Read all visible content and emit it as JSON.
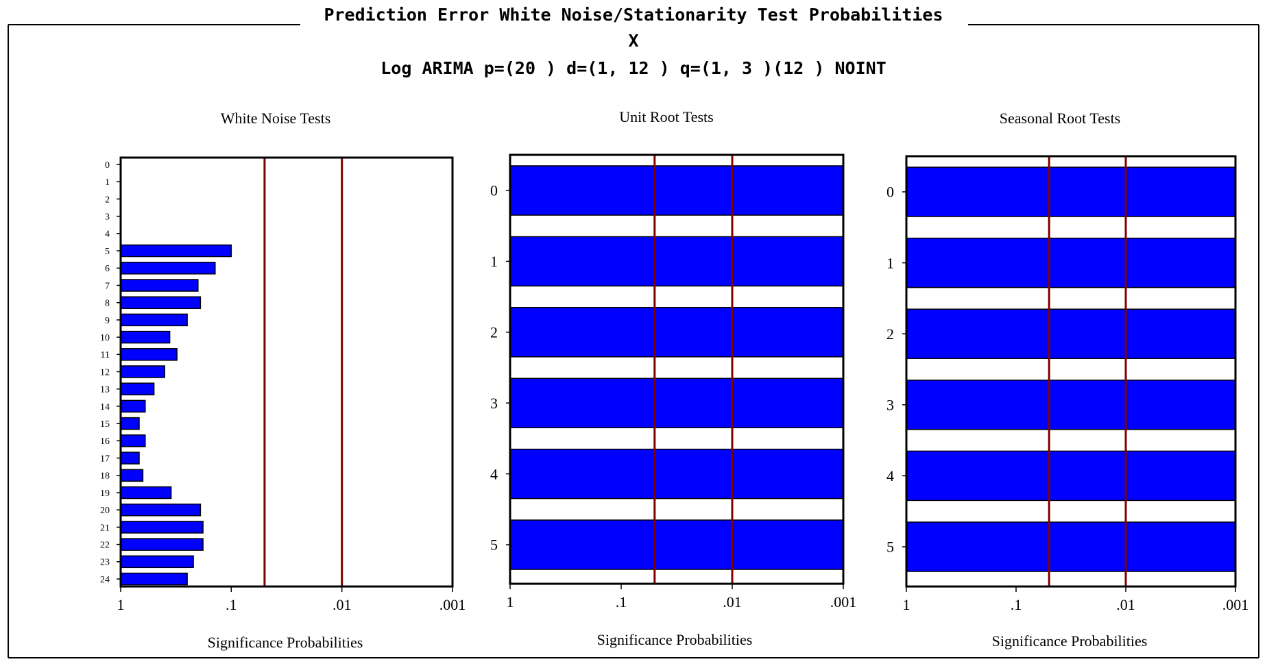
{
  "window": {
    "title": "Prediction Error White Noise/Stationarity Test Probabilities",
    "series_name": "X",
    "model_label": "Log ARIMA p=(20 ) d=(1, 12 ) q=(1, 3 )(12 ) NOINT"
  },
  "colors": {
    "bar_fill": "#0000ff",
    "bar_stroke": "#000000",
    "reference_line": "#800000",
    "frame": "#000000",
    "background": "#ffffff"
  },
  "chart_data": [
    {
      "type": "bar",
      "orientation": "horizontal",
      "title": "White Noise Tests",
      "xlabel": "Significance Probabilities",
      "x_scale": "log-reversed",
      "xlim": [
        1,
        0.001
      ],
      "x_ticks": [
        "1",
        ".1",
        ".01",
        ".001"
      ],
      "reference_lines": [
        0.05,
        0.01
      ],
      "categories": [
        "0",
        "1",
        "2",
        "3",
        "4",
        "5",
        "6",
        "7",
        "8",
        "9",
        "10",
        "11",
        "12",
        "13",
        "14",
        "15",
        "16",
        "17",
        "18",
        "19",
        "20",
        "21",
        "22",
        "23",
        "24"
      ],
      "values": [
        null,
        null,
        null,
        null,
        null,
        0.1,
        0.14,
        0.2,
        0.19,
        0.25,
        0.36,
        0.31,
        0.4,
        0.5,
        0.6,
        0.68,
        0.6,
        0.68,
        0.63,
        0.35,
        0.19,
        0.18,
        0.18,
        0.22,
        0.25
      ]
    },
    {
      "type": "bar",
      "orientation": "horizontal",
      "title": "Unit Root Tests",
      "xlabel": "Significance Probabilities",
      "x_scale": "log-reversed",
      "xlim": [
        1,
        0.001
      ],
      "x_ticks": [
        "1",
        ".1",
        ".01",
        ".001"
      ],
      "reference_lines": [
        0.05,
        0.01
      ],
      "categories": [
        "0",
        "1",
        "2",
        "3",
        "4",
        "5"
      ],
      "values": [
        0.001,
        0.001,
        0.001,
        0.001,
        0.001,
        0.001
      ]
    },
    {
      "type": "bar",
      "orientation": "horizontal",
      "title": "Seasonal Root Tests",
      "xlabel": "Significance Probabilities",
      "x_scale": "log-reversed",
      "xlim": [
        1,
        0.001
      ],
      "x_ticks": [
        "1",
        ".1",
        ".01",
        ".001"
      ],
      "reference_lines": [
        0.05,
        0.01
      ],
      "categories": [
        "0",
        "1",
        "2",
        "3",
        "4",
        "5"
      ],
      "values": [
        0.001,
        0.001,
        0.001,
        0.001,
        0.001,
        0.001
      ]
    }
  ]
}
